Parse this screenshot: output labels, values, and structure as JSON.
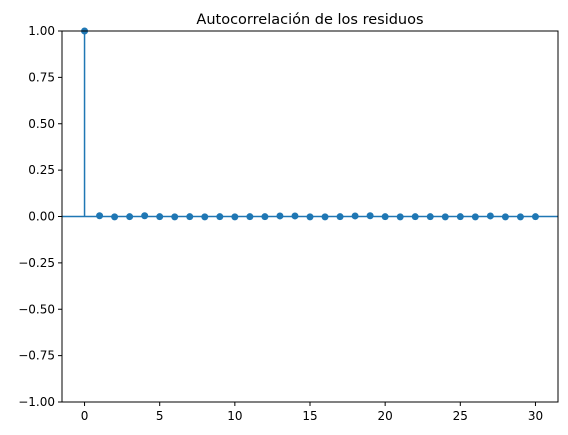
{
  "chart_data": {
    "type": "stem",
    "title": "Autocorrelación de los residuos",
    "xlabel": "",
    "ylabel": "",
    "xlim": [
      -1.5,
      31.5
    ],
    "ylim": [
      -1.0,
      1.0
    ],
    "x_ticks": [
      0,
      5,
      10,
      15,
      20,
      25,
      30
    ],
    "y_ticks": [
      "1.00",
      "0.75",
      "0.50",
      "0.25",
      "0.00",
      "−0.25",
      "−0.50",
      "−0.75",
      "−1.00"
    ],
    "y_tick_values": [
      1.0,
      0.75,
      0.5,
      0.25,
      0.0,
      -0.25,
      -0.5,
      -0.75,
      -1.0
    ],
    "grid": false,
    "series": [
      {
        "color": "#1f77b4",
        "x": [
          0,
          1,
          2,
          3,
          4,
          5,
          6,
          7,
          8,
          9,
          10,
          11,
          12,
          13,
          14,
          15,
          16,
          17,
          18,
          19,
          20,
          21,
          22,
          23,
          24,
          25,
          26,
          27,
          28,
          29,
          30
        ],
        "values": [
          1.0,
          0.004,
          -0.002,
          -0.001,
          0.004,
          -0.001,
          -0.002,
          -0.001,
          -0.002,
          -0.001,
          -0.002,
          -0.001,
          -0.001,
          0.003,
          0.003,
          -0.002,
          -0.002,
          -0.001,
          0.003,
          0.004,
          -0.001,
          -0.002,
          -0.001,
          -0.001,
          -0.002,
          -0.001,
          -0.002,
          0.003,
          -0.002,
          -0.002,
          -0.001
        ]
      }
    ],
    "zero_line_color": "#1f77b4"
  }
}
